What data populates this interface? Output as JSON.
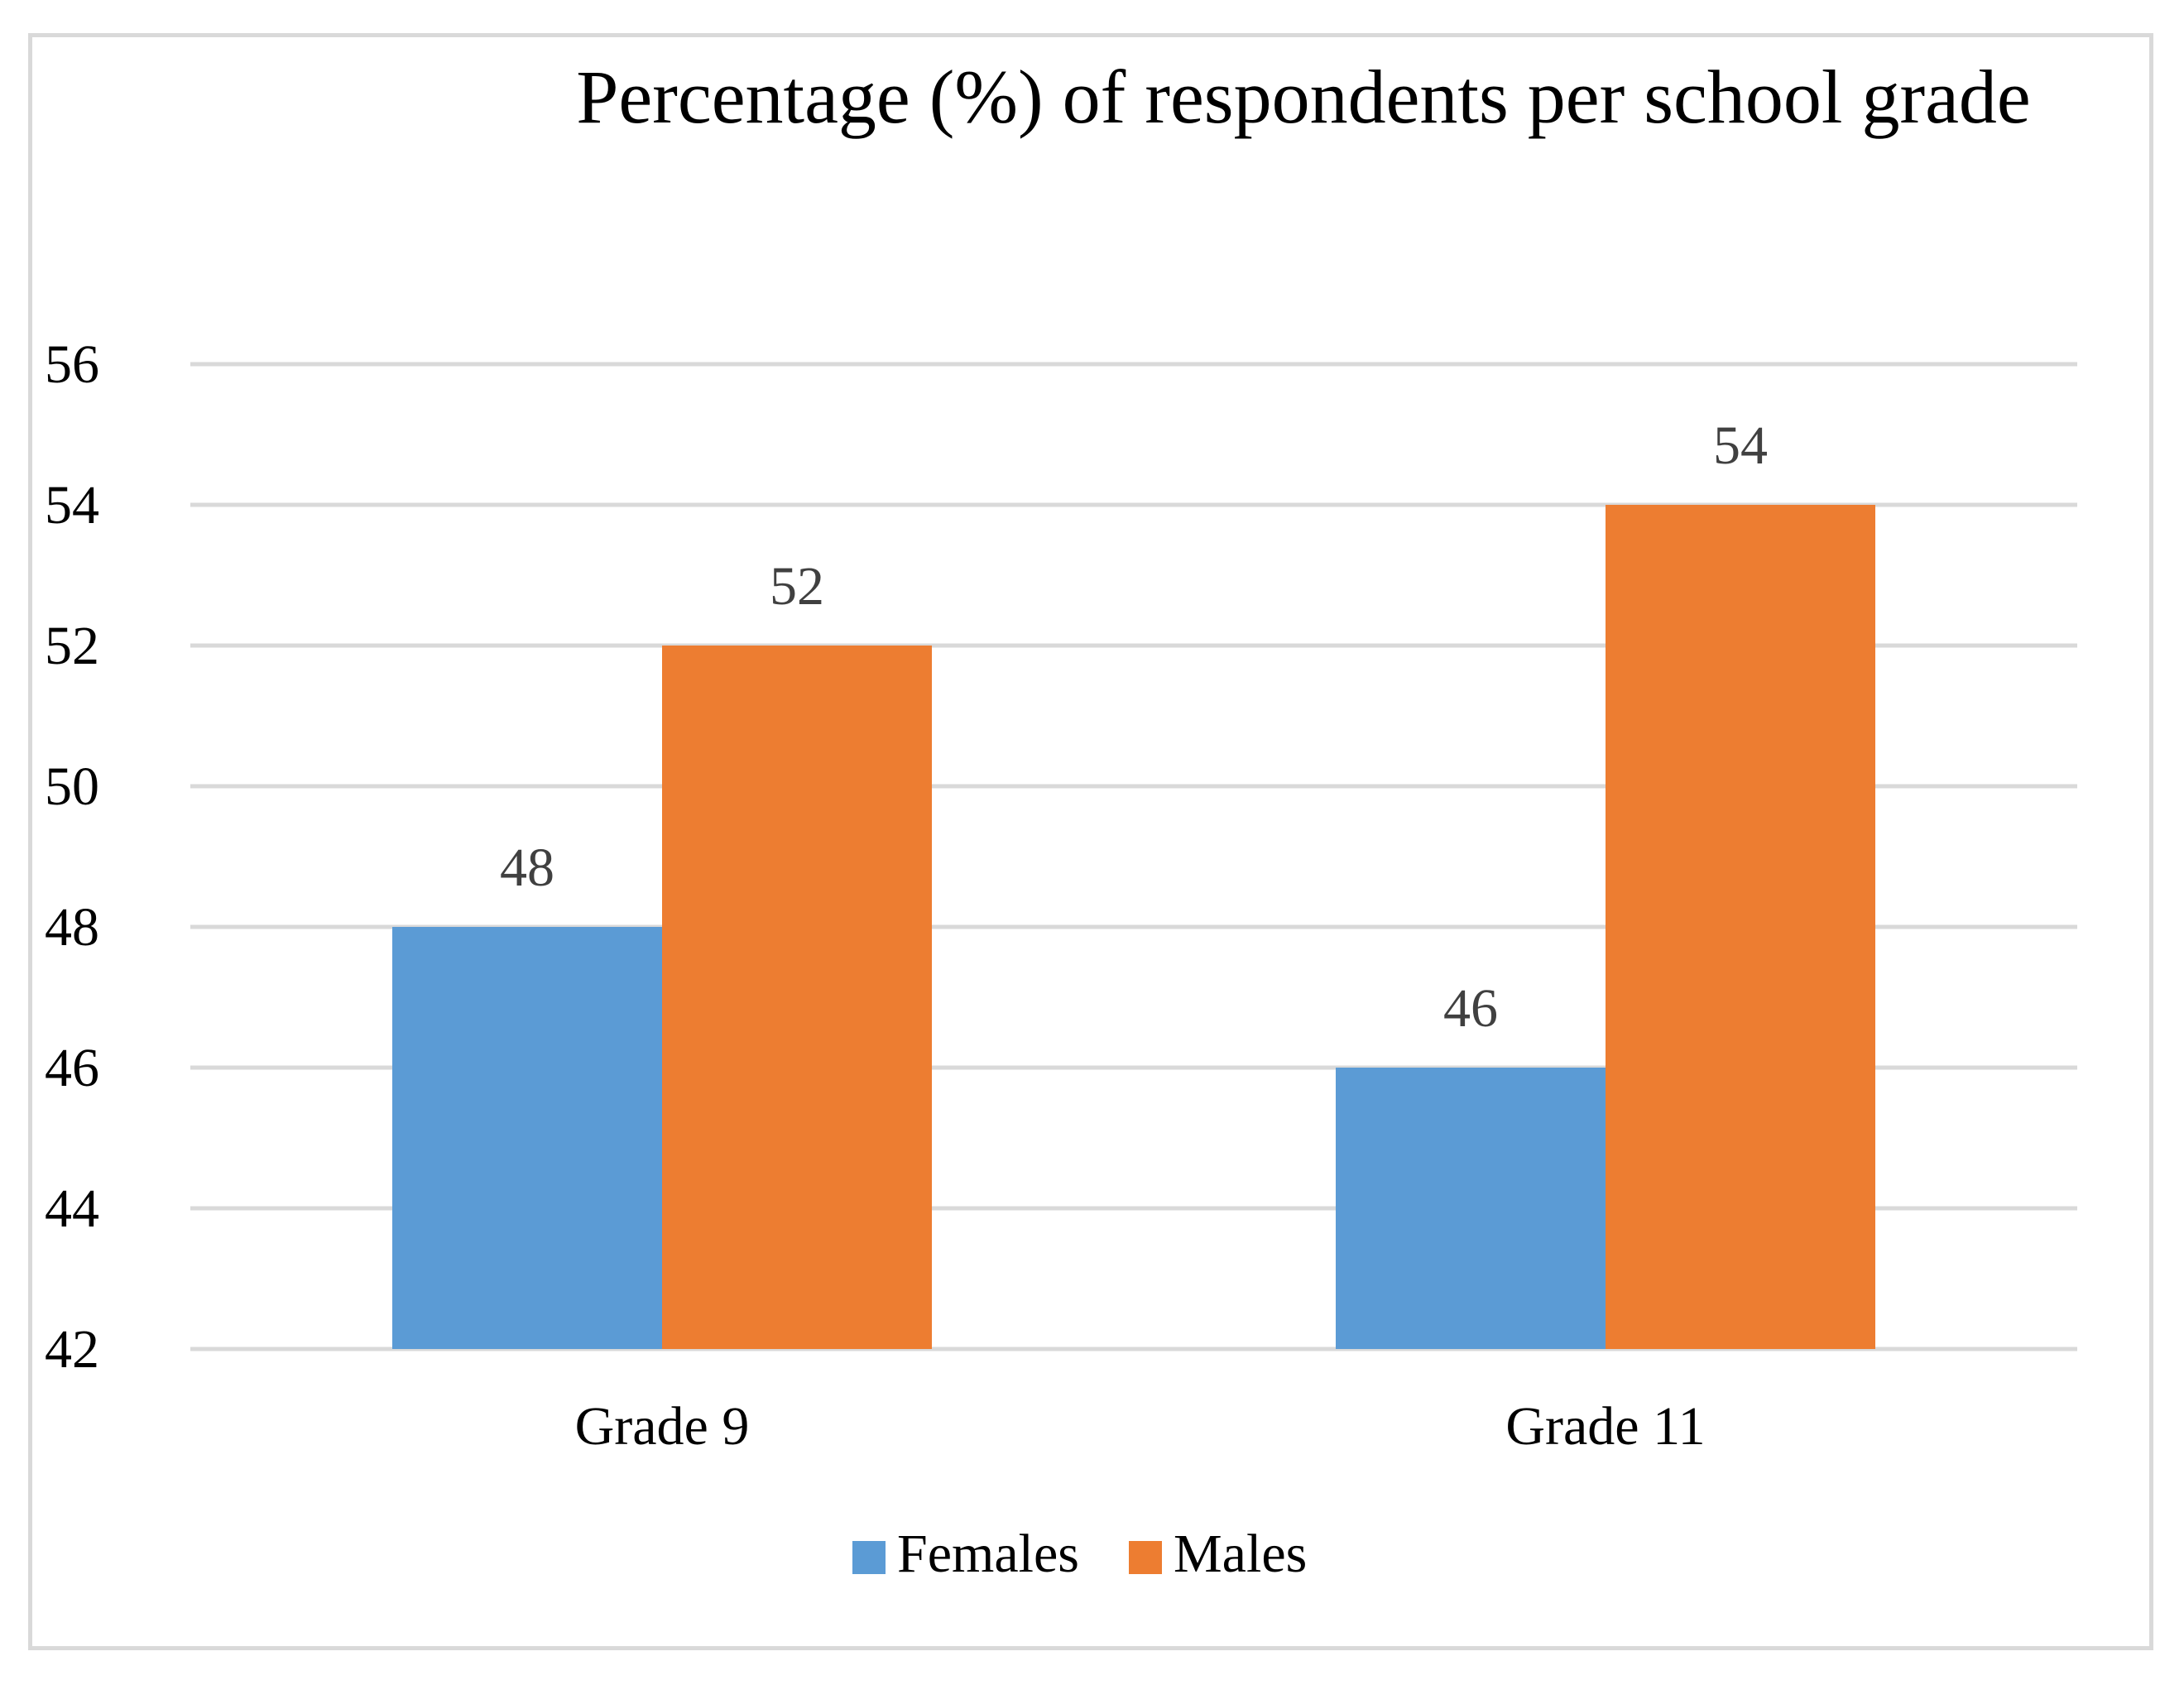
{
  "chart_data": {
    "type": "bar",
    "title": "Percentage (%) of respondents per school grade",
    "categories": [
      "Grade 9",
      "Grade 11"
    ],
    "series": [
      {
        "name": "Females",
        "values": [
          48,
          46
        ],
        "color": "#5b9bd5"
      },
      {
        "name": "Males",
        "values": [
          52,
          54
        ],
        "color": "#ed7d31"
      }
    ],
    "yticks": [
      "42",
      "44",
      "46",
      "48",
      "50",
      "52",
      "54",
      "56"
    ],
    "ylim": [
      42,
      56
    ],
    "grid": true,
    "legend_position": "bottom",
    "xlabel": "",
    "ylabel": ""
  },
  "colors": {
    "grid": "#d9d9d9",
    "frame": "#d9d9d9",
    "label": "#404040"
  }
}
